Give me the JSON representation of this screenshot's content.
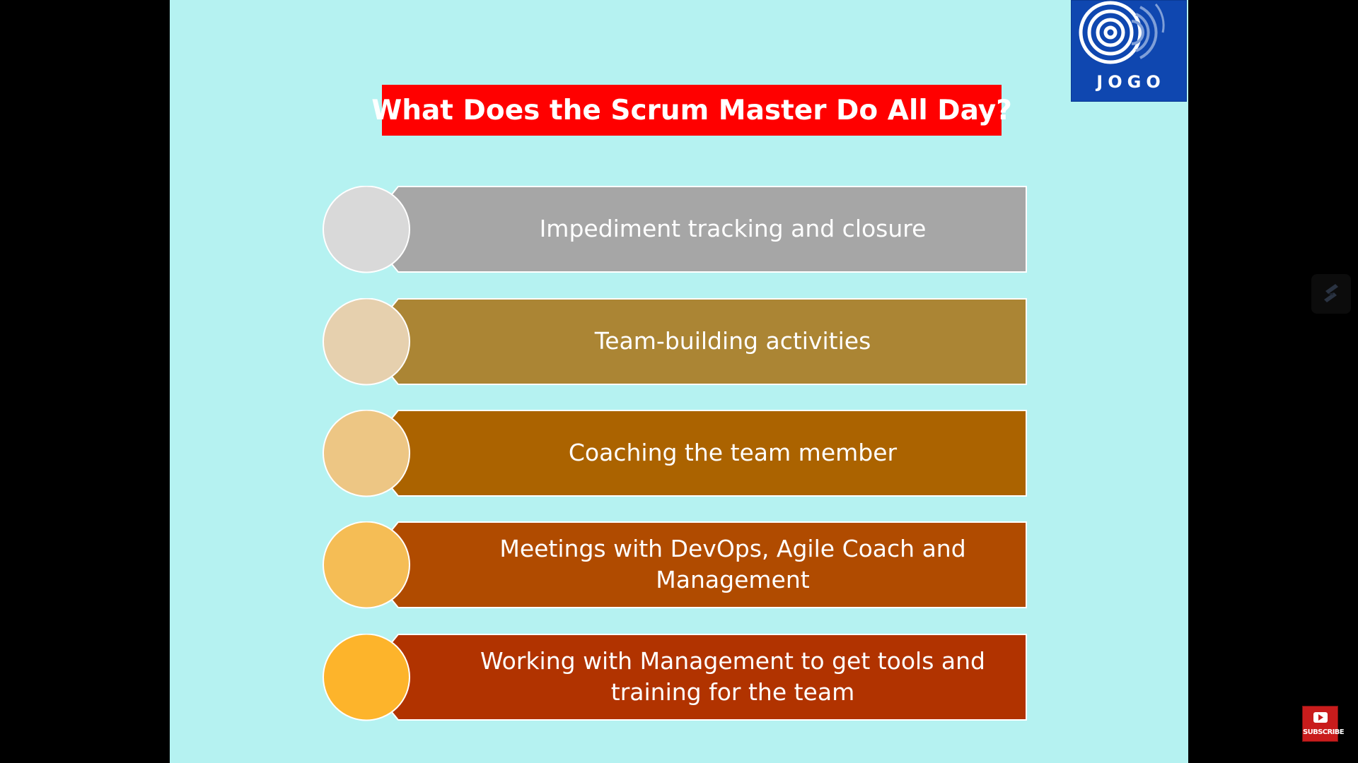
{
  "slide": {
    "title": "What Does the Scrum Master Do All Day?",
    "logo": {
      "text": "JOGO",
      "icon": "concentric-circles-logo-icon",
      "color": "#0f47b0"
    },
    "colors": {
      "background": "#b5f2f1",
      "title_box": "#ff0000"
    },
    "items": [
      {
        "label": "Impediment tracking and closure",
        "circle_color": "#d9d9d9",
        "bar_color": "#a6a6a6"
      },
      {
        "label": "Team-building activities",
        "circle_color": "#e6d0ae",
        "bar_color": "#ab8534"
      },
      {
        "label": "Coaching the team member",
        "circle_color": "#edc684",
        "bar_color": "#ab6300"
      },
      {
        "label": "Meetings with DevOps, Agile Coach and Management",
        "circle_color": "#f5bd55",
        "bar_color": "#b04b00"
      },
      {
        "label": "Working with Management to get tools and training for the team",
        "circle_color": "#fdb42b",
        "bar_color": "#b13300"
      }
    ]
  },
  "overlay": {
    "side_icon": "slash-logo-icon",
    "subscribe_label": "SUBSCRIBE",
    "subscribe_icon": "youtube-play-icon"
  }
}
